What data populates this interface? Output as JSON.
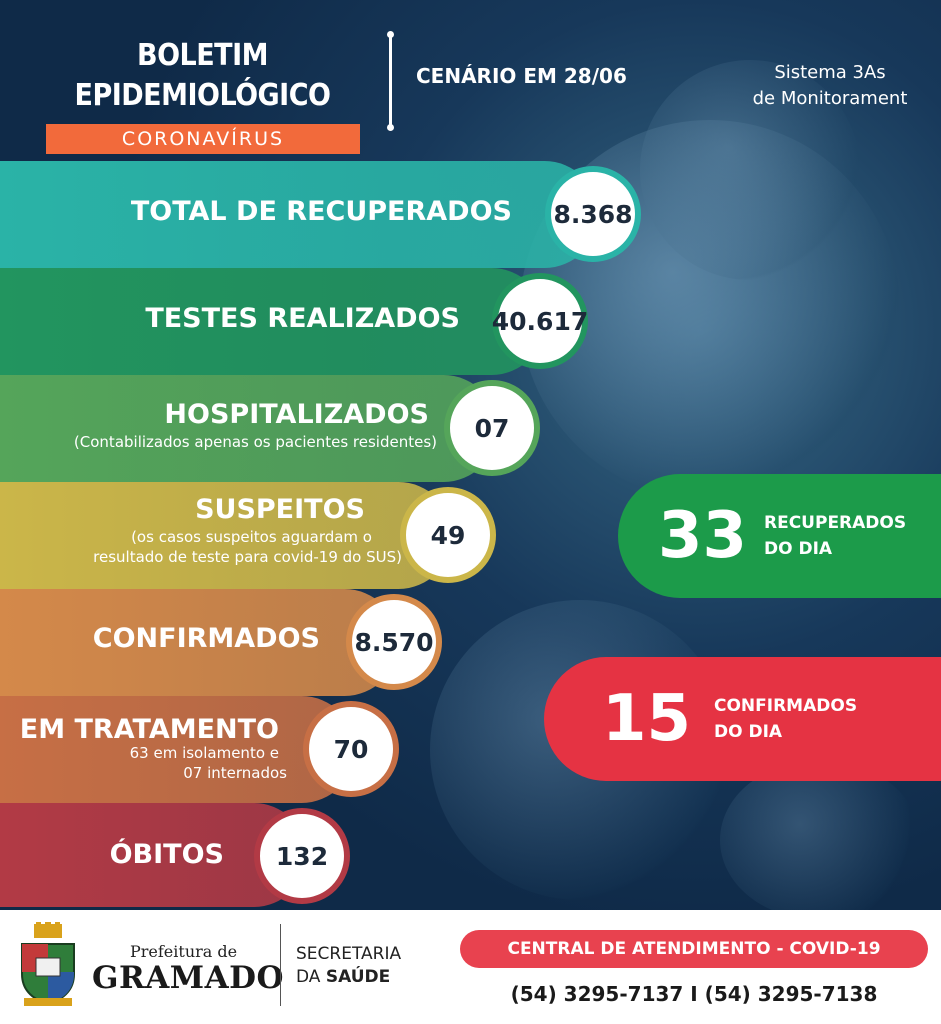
{
  "header": {
    "title": "BOLETIM EPIDEMIOLÓGICO",
    "subtitle": "CORONAVÍRUS",
    "scenario": "CENÁRIO EM 28/06",
    "system_line1": "Sistema 3As",
    "system_line2": "de Monitorament"
  },
  "stats": [
    {
      "label": "TOTAL DE RECUPERADOS",
      "value": "8.368",
      "color": "#2ab3a7"
    },
    {
      "label": "TESTES REALIZADOS",
      "value": "40.617",
      "color": "#22955f"
    },
    {
      "label": "HOSPITALIZADOS",
      "note": "(Contabilizados apenas os pacientes residentes)",
      "value": "07",
      "color": "#55a55a"
    },
    {
      "label": "SUSPEITOS",
      "note1": "(os casos suspeitos aguardam o",
      "note2": "resultado de teste para covid-19 do SUS)",
      "value": "49",
      "color": "#cbb649"
    },
    {
      "label": "CONFIRMADOS",
      "value": "8.570",
      "color": "#d4894a"
    },
    {
      "label": "EM TRATAMENTO",
      "note1": "63 em isolamento e",
      "note2": "07 internados",
      "value": "70",
      "color": "#c76f45"
    },
    {
      "label": "ÓBITOS",
      "value": "132",
      "color": "#b23a45"
    }
  ],
  "daily": {
    "recovered": {
      "value": "33",
      "line1": "RECUPERADOS",
      "line2": "DO DIA",
      "color": "#1c9b4a"
    },
    "confirmed": {
      "value": "15",
      "line1": "CONFIRMADOS",
      "line2": "DO DIA",
      "color": "#e53343"
    }
  },
  "footer": {
    "prefeitura": "Prefeitura de",
    "city": "GRAMADO",
    "secretaria": "SECRETARIA",
    "da": "DA",
    "saude": "SAÚDE",
    "central": "CENTRAL DE ATENDIMENTO - COVID-19",
    "phones": "(54) 3295-7137 I (54) 3295-7138"
  }
}
